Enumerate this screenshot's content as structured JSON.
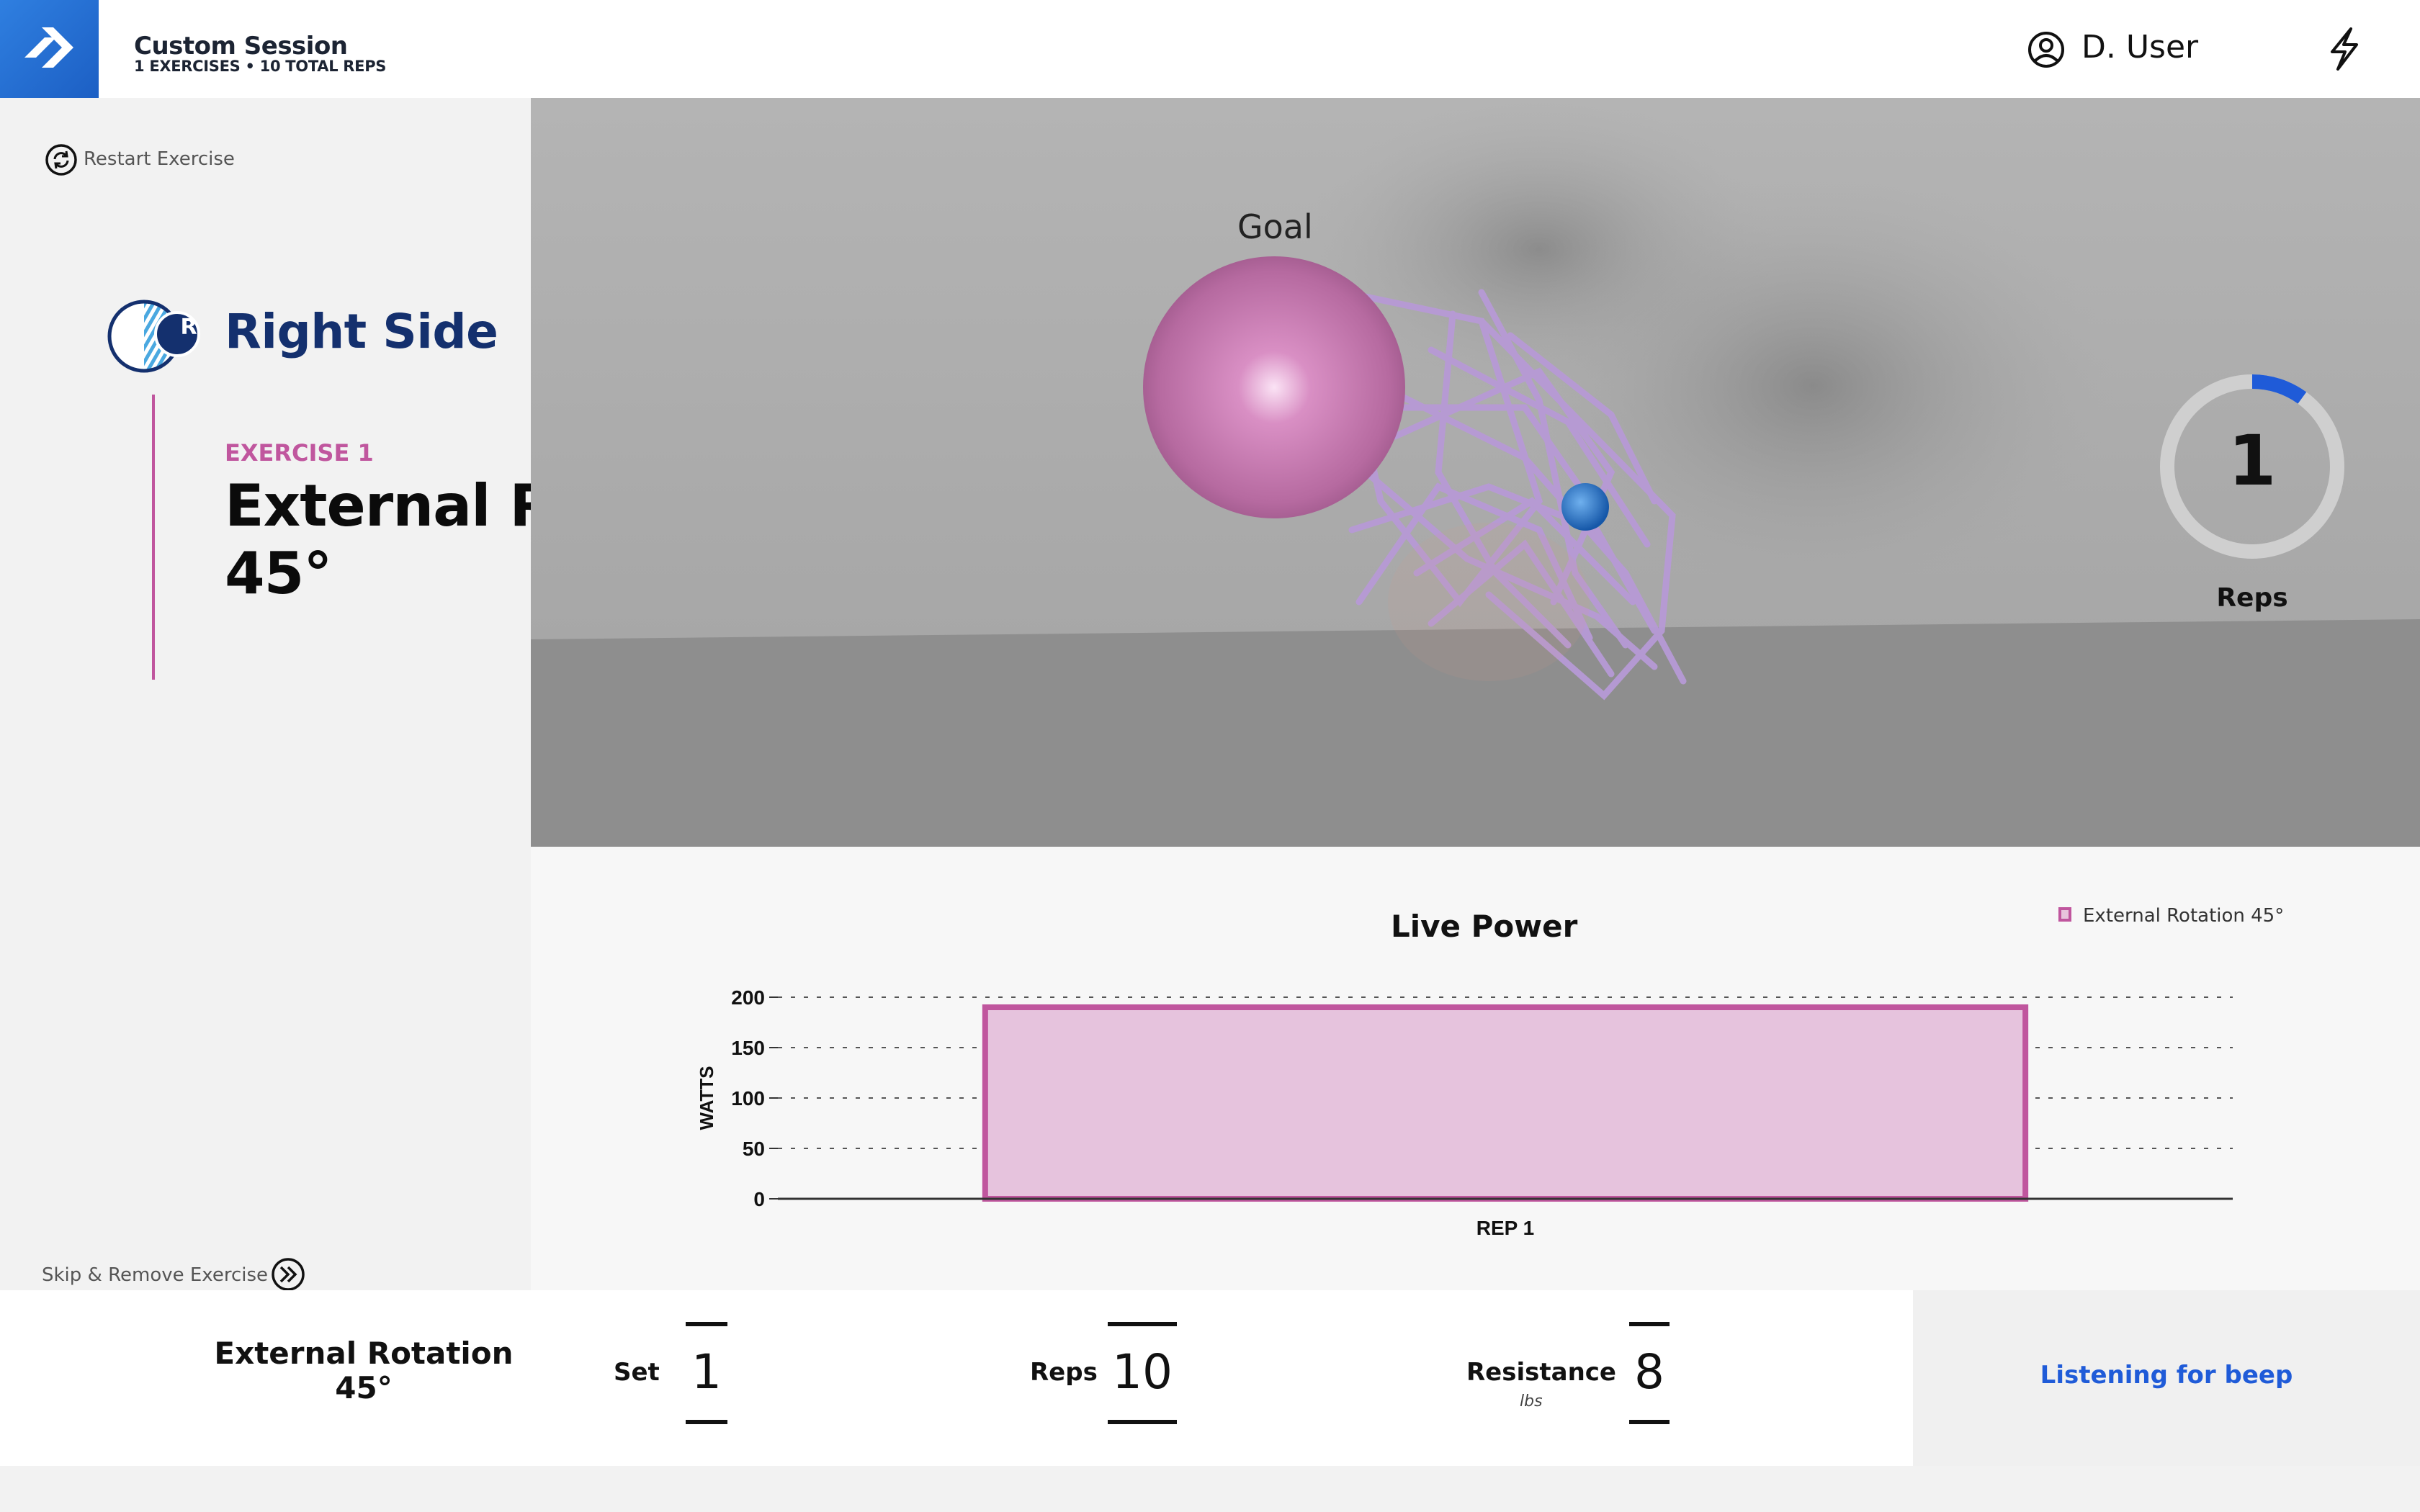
{
  "header": {
    "session_title": "Custom Session",
    "session_subtitle": "1 EXERCISES • 10 TOTAL REPS",
    "user_name": "D. User"
  },
  "left_panel": {
    "restart_label": "Restart Exercise",
    "side_badge": "R",
    "side_label": "Right Side",
    "exercise_number": "EXERCISE 1",
    "exercise_name_line1": "External Rotation",
    "exercise_name_line2": "45°",
    "skip_label": "Skip & Remove Exercise"
  },
  "scene": {
    "goal_label": "Goal",
    "reps_count": "1",
    "reps_label": "Reps",
    "reps_progress": 0.1
  },
  "chart_data": {
    "type": "bar",
    "title": "Live Power",
    "categories": [
      "REP 1"
    ],
    "series": [
      {
        "name": "External Rotation 45°",
        "values": [
          190
        ]
      }
    ],
    "ylabel": "WATTS",
    "xlabel": "",
    "ylim": [
      0,
      200
    ],
    "yticks": [
      0,
      50,
      100,
      150,
      200
    ],
    "grid": true,
    "legend": "top-right",
    "colors": {
      "bar_fill": "#e6c3dd",
      "bar_stroke": "#c0569e"
    }
  },
  "bottom": {
    "exercise_line1": "External Rotation",
    "exercise_line2": "45°",
    "set_label": "Set",
    "set_value": "1",
    "reps_label": "Reps",
    "reps_value": "10",
    "resistance_label": "Resistance",
    "resistance_unit": "lbs",
    "resistance_value": "8",
    "status": "Listening for beep"
  },
  "colors": {
    "accent_blue": "#1f5bd8",
    "navy": "#14306e",
    "magenta": "#c0569e"
  }
}
